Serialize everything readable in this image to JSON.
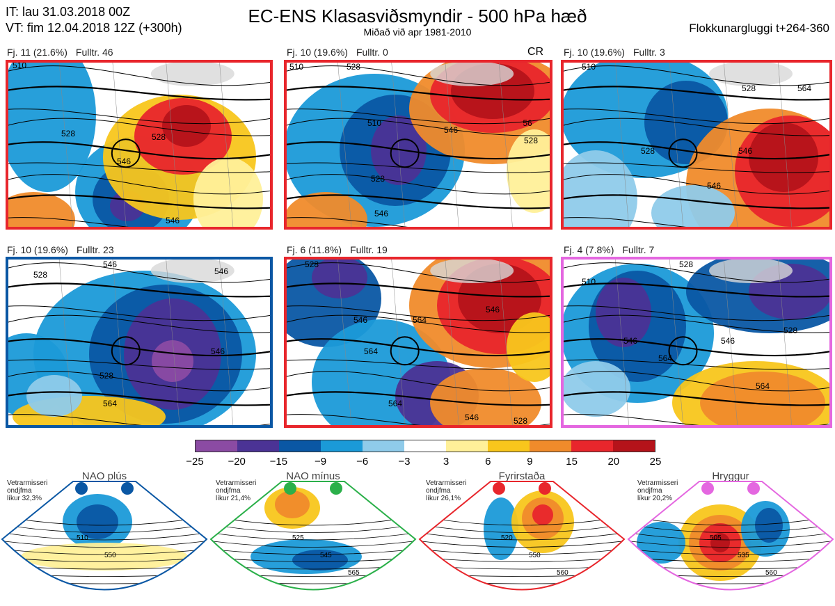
{
  "header": {
    "it": "IT: lau 31.03.2018 00Z",
    "vt": "VT: fim 12.04.2018 12Z  (+300h)",
    "title": "EC-ENS Klasasviðsmyndir - 500 hPa hæð",
    "subtitle": "Miðað við apr 1981-2010",
    "window": "Flokkunargluggi t+264-360"
  },
  "panels": [
    {
      "cluster": "Fj. 11 (21.6%)",
      "rep": "Fulltr. 46",
      "border": "#e8262c",
      "extra": "",
      "contours": [
        "510",
        "528",
        "546",
        "528",
        "546"
      ]
    },
    {
      "cluster": "Fj. 10 (19.6%)",
      "rep": "Fulltr. 0",
      "border": "#e8262c",
      "extra": "CR",
      "contours": [
        "510",
        "528",
        "510",
        "528",
        "546",
        "546",
        "56",
        "528"
      ]
    },
    {
      "cluster": "Fj. 10 (19.6%)",
      "rep": "Fulltr. 3",
      "border": "#e8262c",
      "extra": "",
      "contours": [
        "510",
        "528",
        "528",
        "546",
        "564",
        "546"
      ]
    },
    {
      "cluster": "Fj. 10 (19.6%)",
      "rep": "Fulltr. 23",
      "border": "#0a57a4",
      "extra": "",
      "contours": [
        "528",
        "546",
        "546",
        "528",
        "546",
        "564"
      ]
    },
    {
      "cluster": "Fj. 6 (11.8%)",
      "rep": "Fulltr. 19",
      "border": "#e8262c",
      "extra": "",
      "contours": [
        "528",
        "546",
        "564",
        "546",
        "564",
        "564",
        "546",
        "528"
      ]
    },
    {
      "cluster": "Fj. 4 (7.8%)",
      "rep": "Fulltr. 7",
      "border": "#e467e0",
      "extra": "",
      "contours": [
        "510",
        "528",
        "546",
        "564",
        "528",
        "546",
        "564"
      ]
    }
  ],
  "colorbar": {
    "colors": [
      "#8b4ba3",
      "#4b3395",
      "#0a57a4",
      "#1b9ad8",
      "#8fcbea",
      "#ffffff",
      "#fff099",
      "#f8c61c",
      "#f08b2b",
      "#e8262c",
      "#b5131a"
    ],
    "ticks": [
      "−25",
      "−20",
      "−15",
      "−9",
      "−6",
      "−3",
      "3",
      "6",
      "9",
      "15",
      "20",
      "25"
    ]
  },
  "regimes": [
    {
      "name": "NAO plús",
      "note": "Vetrarmisseri\nondjfma\nlíkur 32,3%",
      "color": "#0a57a4",
      "contours": [
        "510",
        "550"
      ]
    },
    {
      "name": "NAO mínus",
      "note": "Vetrarmisseri\nondjfma\nlíkur 21,4%",
      "color": "#2bb04a",
      "contours": [
        "525",
        "545",
        "565"
      ]
    },
    {
      "name": "Fyrirstaða",
      "note": "Vetrarmisseri\nondjfma\nlíkur 26,1%",
      "color": "#e8262c",
      "contours": [
        "520",
        "550",
        "560"
      ]
    },
    {
      "name": "Hryggur",
      "note": "Vetrarmisseri\nondjfma\nlíkur 20,2%",
      "color": "#e467e0",
      "contours": [
        "505",
        "535",
        "560"
      ]
    }
  ]
}
